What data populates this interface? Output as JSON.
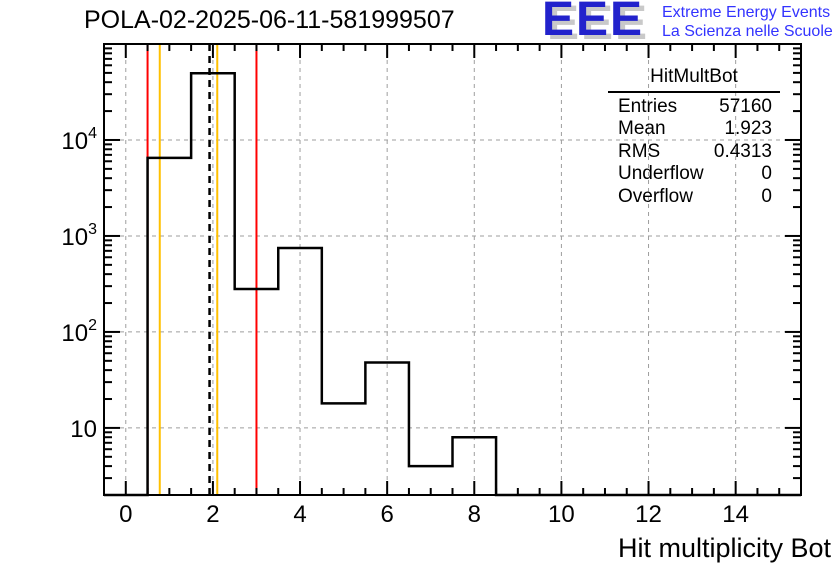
{
  "header": {
    "title": "POLA-02-2025-06-11-581999507"
  },
  "logo": {
    "letters": "EEE",
    "line1": "Extreme Energy Events",
    "line2": "La Scienza nelle Scuole",
    "letter_color": "#2222cc",
    "text_color": "#3333ff",
    "shadow_color": "#c9c9c9"
  },
  "stats": {
    "title": "HitMultBot",
    "rows": [
      {
        "label": "Entries",
        "value": "57160"
      },
      {
        "label": "Mean",
        "value": "1.923"
      },
      {
        "label": "RMS",
        "value": "0.4313"
      },
      {
        "label": "Underflow",
        "value": "0"
      },
      {
        "label": "Overflow",
        "value": "0"
      }
    ]
  },
  "chart_data": {
    "type": "bar",
    "title": "POLA-02-2025-06-11-581999507",
    "xlabel": "Hit multiplicity Bot",
    "ylabel": "",
    "x_range": [
      -0.5,
      15.5
    ],
    "y_range": [
      2,
      100000
    ],
    "y_scale": "log",
    "grid": true,
    "legend_position": "none",
    "bin_centers": [
      0,
      1,
      2,
      3,
      4,
      5,
      6,
      7,
      8,
      9,
      10,
      11,
      12,
      13,
      14,
      15
    ],
    "counts": [
      0,
      6500,
      49550,
      280,
      750,
      18,
      48,
      4,
      8,
      0,
      0,
      0,
      0,
      0,
      0,
      0
    ],
    "x_major_ticks": [
      0,
      2,
      4,
      6,
      8,
      10,
      12,
      14
    ],
    "x_minor_step": 0.5,
    "y_major_exponents": [
      1,
      2,
      3,
      4
    ],
    "line_color": "#000000",
    "grid_color": "#9e9e9e",
    "frame_color": "#000000",
    "marker_lines": [
      {
        "x": 0.5,
        "color": "#ff0000",
        "style": "solid"
      },
      {
        "x": 0.78,
        "color": "#ffc000",
        "style": "solid"
      },
      {
        "x": 1.923,
        "color": "#000000",
        "style": "dashed"
      },
      {
        "x": 2.1,
        "color": "#ffc000",
        "style": "solid"
      },
      {
        "x": 3.0,
        "color": "#ff0000",
        "style": "solid"
      }
    ]
  }
}
